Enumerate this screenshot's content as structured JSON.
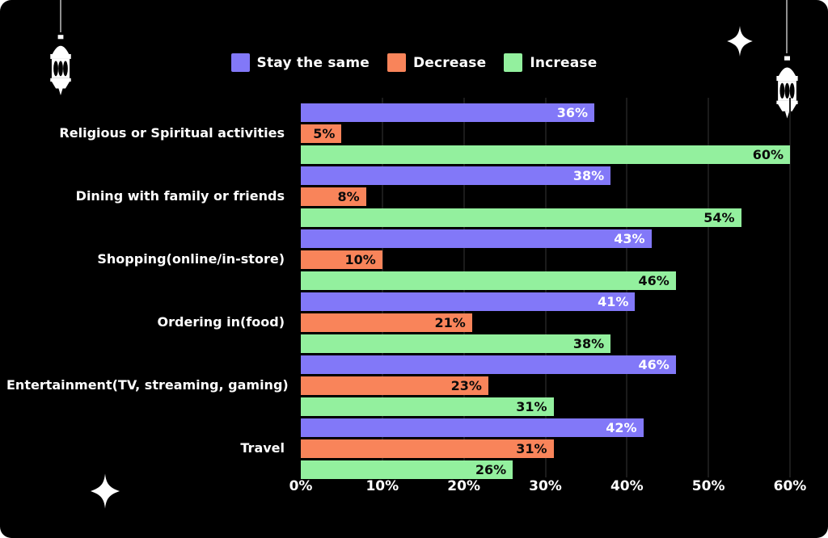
{
  "chart_data": {
    "type": "bar",
    "orientation": "horizontal",
    "title": "",
    "categories": [
      "Religious or Spiritual activities",
      "Dining with family or friends",
      "Shopping(online/in-store)",
      "Ordering in(food)",
      "Entertainment(TV, streaming, gaming)",
      "Travel"
    ],
    "series": [
      {
        "name": "Stay the same",
        "color": "#8278F8",
        "label_color": "#FFFFFF",
        "values": [
          36,
          38,
          43,
          41,
          46,
          42
        ]
      },
      {
        "name": "Decrease",
        "color": "#F9845A",
        "label_color": "#0B0B0B",
        "values": [
          5,
          8,
          10,
          21,
          23,
          31
        ]
      },
      {
        "name": "Increase",
        "color": "#93F09E",
        "label_color": "#0B0B0B",
        "values": [
          60,
          54,
          46,
          38,
          31,
          26
        ]
      }
    ],
    "x_ticks": [
      "0%",
      "10%",
      "20%",
      "30%",
      "40%",
      "50%",
      "60%"
    ],
    "xlim": [
      0,
      60
    ],
    "value_suffix": "%",
    "grid": true,
    "legend_position": "top",
    "background_color": "#000000",
    "gridline_color": "#1B1B1B",
    "text_color": "#FFFFFF"
  },
  "decorations": {
    "top_left": "lantern-icon",
    "top_right": "lantern-icon",
    "sparkle_top_right": "sparkle-icon",
    "sparkle_bottom_left": "sparkle-icon"
  }
}
